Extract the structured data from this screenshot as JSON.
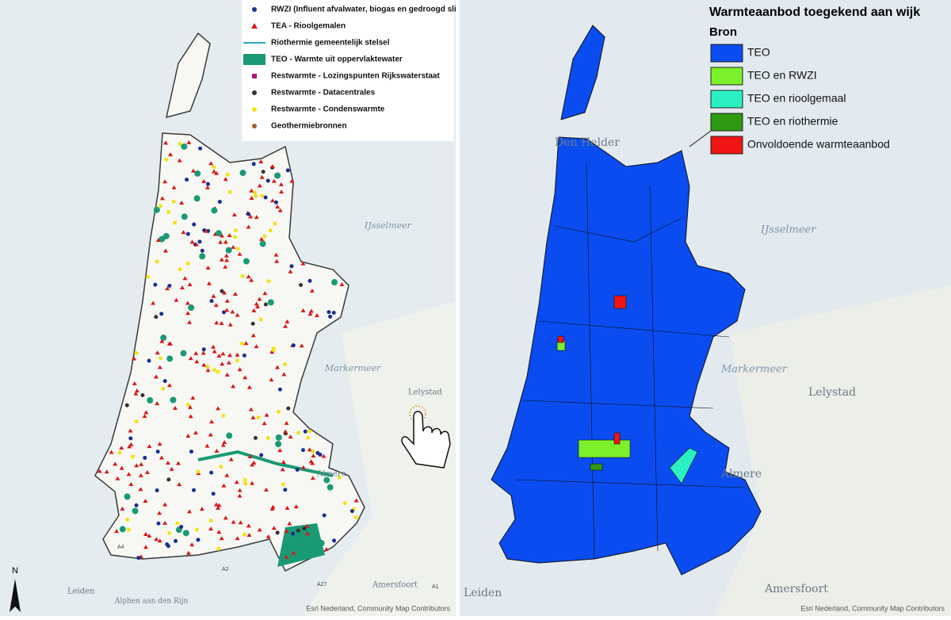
{
  "left_map": {
    "legend": [
      {
        "label": "RWZI (Influent afvalwater, biogas en gedroogd slib)",
        "symbol": "circle",
        "color": "#1a2f8f"
      },
      {
        "label": "TEA - Rioolgemalen",
        "symbol": "triangle",
        "color": "#d7191c"
      },
      {
        "label": "Riothermie gemeentelijk stelsel",
        "symbol": "line",
        "color": "#2aa3c9"
      },
      {
        "label": "TEO - Warmte uit oppervlaktewater",
        "symbol": "rect",
        "color": "#1a9a74"
      },
      {
        "label": "Restwarmte - Lozingspunten Rijkswaterstaat",
        "symbol": "square",
        "color": "#b0147a"
      },
      {
        "label": "Restwarmte - Datacentrales",
        "symbol": "circle",
        "color": "#333333"
      },
      {
        "label": "Restwarmte - Condenswarmte",
        "symbol": "circle",
        "color": "#f4e21a"
      },
      {
        "label": "Geothermiebronnen",
        "symbol": "circle",
        "color": "#a0622a"
      }
    ],
    "place_labels": [
      "IJsselmeer",
      "Markermeer",
      "Lelystad",
      "Almere",
      "Leiden",
      "Alphen aan den Rijn",
      "Amersfoort"
    ],
    "road_labels": [
      "A4",
      "A2",
      "A27",
      "A1"
    ],
    "north": "N",
    "attribution": "Esri Nederland, Community Map Contributors"
  },
  "right_map": {
    "title": "Warmteaanbod toegekend aan wijk",
    "legend_title": "Bron",
    "legend": [
      {
        "label": "TEO",
        "color": "#0a4cf0"
      },
      {
        "label": "TEO en RWZI",
        "color": "#7cf02a"
      },
      {
        "label": "TEO en rioolgemaal",
        "color": "#2af0c4"
      },
      {
        "label": "TEO en riothermie",
        "color": "#2e9a14"
      },
      {
        "label": "Onvoldoende warmteaanbod",
        "color": "#f01414"
      }
    ],
    "place_labels": [
      "Den Helder",
      "IJsselmeer",
      "Markermeer",
      "Lelystad",
      "Almere",
      "Leiden",
      "Amersfoort"
    ],
    "attribution": "Esri Nederland, Community Map Contributors"
  }
}
